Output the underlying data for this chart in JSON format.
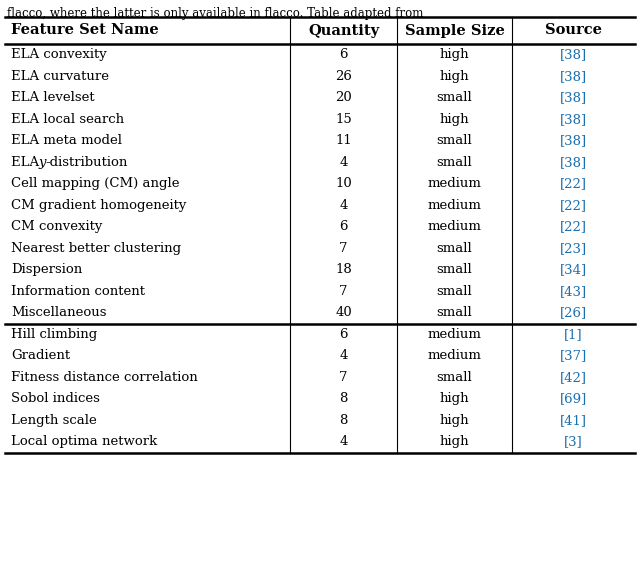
{
  "header": [
    "Feature Set Name",
    "Quantity",
    "Sample Size",
    "Source"
  ],
  "rows_group1": [
    [
      "ELA convexity",
      "6",
      "high",
      "[38]"
    ],
    [
      "ELA curvature",
      "26",
      "high",
      "[38]"
    ],
    [
      "ELA levelset",
      "20",
      "small",
      "[38]"
    ],
    [
      "ELA local search",
      "15",
      "high",
      "[38]"
    ],
    [
      "ELA meta model",
      "11",
      "small",
      "[38]"
    ],
    [
      "ELA y-distribution",
      "4",
      "small",
      "[38]"
    ],
    [
      "Cell mapping (CM) angle",
      "10",
      "medium",
      "[22]"
    ],
    [
      "CM gradient homogeneity",
      "4",
      "medium",
      "[22]"
    ],
    [
      "CM convexity",
      "6",
      "medium",
      "[22]"
    ],
    [
      "Nearest better clustering",
      "7",
      "small",
      "[23]"
    ],
    [
      "Dispersion",
      "18",
      "small",
      "[34]"
    ],
    [
      "Information content",
      "7",
      "small",
      "[43]"
    ],
    [
      "Miscellaneous",
      "40",
      "small",
      "[26]"
    ]
  ],
  "rows_group2": [
    [
      "Hill climbing",
      "6",
      "medium",
      "[1]"
    ],
    [
      "Gradient",
      "4",
      "medium",
      "[37]"
    ],
    [
      "Fitness distance correlation",
      "7",
      "small",
      "[42]"
    ],
    [
      "Sobol indices",
      "8",
      "high",
      "[69]"
    ],
    [
      "Length scale",
      "8",
      "high",
      "[41]"
    ],
    [
      "Local optima network",
      "4",
      "high",
      "[3]"
    ]
  ],
  "source_color": "#1a6faf",
  "header_color": "#000000",
  "text_color": "#000000",
  "bg_color": "#ffffff",
  "fig_width": 6.4,
  "fig_height": 5.75,
  "font_size": 9.5,
  "header_font_size": 10.5,
  "top_caption": "flacco, where the latter is only available in flacco. Table adapted from"
}
